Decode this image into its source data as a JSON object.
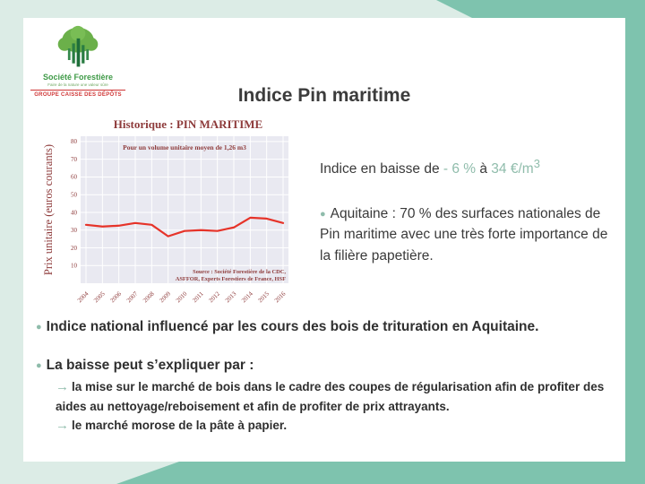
{
  "slide": {
    "title": "Indice Pin maritime"
  },
  "logo": {
    "company": "Société Forestière",
    "tagline": "Faire de la nature une valeur sûre",
    "group": "GROUPE CAISSE DES DÉPÔTS"
  },
  "icons": {
    "bullet": "●",
    "arrow": "→"
  },
  "colors": {
    "mint": "#dcece6",
    "sage": "#7ec3ae",
    "teal_text": "#8fbcab",
    "maroon": "#8e3b3b",
    "line_red": "#e63329",
    "plot_bg": "#e9e9f1"
  },
  "right_panel": {
    "lead": {
      "prefix": "Indice en baisse de ",
      "delta": "- 6 %",
      "mid": " à ",
      "value": "34 €/m",
      "sup": "3"
    },
    "aquitaine": "Aquitaine : 70 % des surfaces nationales de Pin maritime avec une très forte importance de la filière papetière."
  },
  "bullets": {
    "national": "Indice national influencé par les cours des bois de trituration en Aquitaine.",
    "baisse_intro": "La baisse peut s’expliquer par :",
    "reasons": [
      "la mise sur le marché de bois dans le cadre des coupes de régularisation afin de profiter des aides au nettoyage/reboisement et afin de profiter de prix attrayants.",
      "le marché morose de la pâte à papier."
    ]
  },
  "chart_data": {
    "type": "line",
    "title": "Historique : PIN MARITIME",
    "subtitle": "Pour un volume unitaire moyen de 1,26 m3",
    "ylabel": "Prix unitaire (euros courants)",
    "xlabel": "",
    "source": [
      "Source : Société Forestière de la CDC,",
      "ASFFOR, Experts Forestiers de France, HSF"
    ],
    "categories": [
      "2004",
      "2005",
      "2006",
      "2007",
      "2008",
      "2009",
      "2010",
      "2011",
      "2012",
      "2013",
      "2014",
      "2015",
      "2016"
    ],
    "values": [
      33,
      32,
      32.5,
      34,
      33,
      26.5,
      29.5,
      30,
      29.5,
      31.5,
      37,
      36.5,
      34
    ],
    "ylim": [
      0,
      83
    ],
    "yticks": [
      10,
      20,
      30,
      40,
      50,
      60,
      70,
      80
    ],
    "grid": true,
    "legend": "none",
    "line_color": "#e63329",
    "plot_bg": "#e9e9f1",
    "label_color": "#8e3b3b"
  }
}
